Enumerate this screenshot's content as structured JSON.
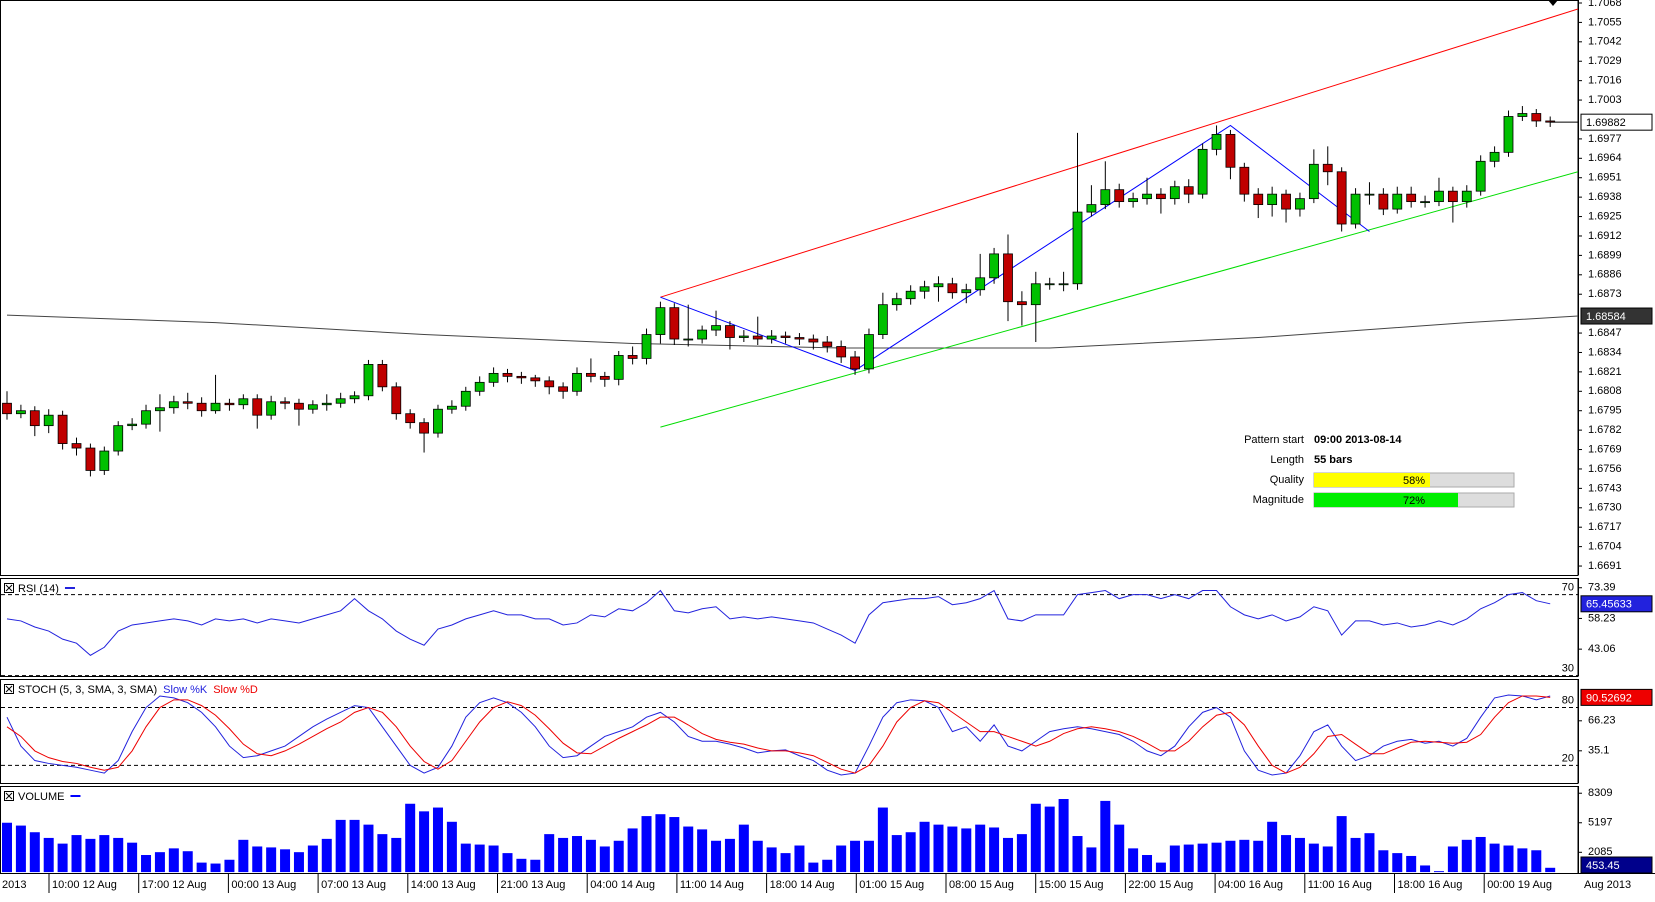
{
  "chart_data": [
    {
      "type": "candlestick",
      "ylim": [
        1.6685,
        1.707
      ],
      "yticks": [
        1.7068,
        1.7055,
        1.7042,
        1.7029,
        1.7016,
        1.7003,
        1.6977,
        1.6964,
        1.6951,
        1.6938,
        1.6925,
        1.6912,
        1.6899,
        1.6886,
        1.6873,
        1.6847,
        1.6834,
        1.6821,
        1.6808,
        1.6795,
        1.6782,
        1.6769,
        1.6756,
        1.6743,
        {
          "value": 1.673,
          "label": "1.6730"
        },
        1.6717,
        1.6704,
        1.6691
      ],
      "up_color": "#00c000",
      "down_color": "#c00000",
      "open": [
        1.68,
        1.6793,
        1.6795,
        1.6785,
        1.6792,
        1.6773,
        1.677,
        1.6755,
        1.6768,
        1.6785,
        1.6786,
        1.6795,
        1.6797,
        1.6801,
        1.68,
        1.6795,
        1.68,
        1.6799,
        1.6803,
        1.6792,
        1.6801,
        1.68,
        1.6796,
        1.6799,
        1.68,
        1.6803,
        1.6805,
        1.6826,
        1.6811,
        1.6793,
        1.6787,
        1.678,
        1.6796,
        1.6798,
        1.6808,
        1.6814,
        1.682,
        1.6818,
        1.6817,
        1.6815,
        1.6811,
        1.6808,
        1.682,
        1.6818,
        1.6816,
        1.6832,
        1.683,
        1.6846,
        1.6864,
        1.6843,
        1.6843,
        1.6849,
        1.6852,
        1.6844,
        1.6845,
        1.6843,
        1.6845,
        1.6844,
        1.6843,
        1.6841,
        1.6838,
        1.6831,
        1.6823,
        1.6846,
        1.6866,
        1.687,
        1.6875,
        1.6878,
        1.688,
        1.6874,
        1.6876,
        1.6884,
        1.69,
        1.6868,
        1.6866,
        1.688,
        1.688,
        1.688,
        1.6928,
        1.6933,
        1.6943,
        1.6935,
        1.6937,
        1.694,
        1.6937,
        1.6945,
        1.694,
        1.697,
        1.698,
        1.6958,
        1.694,
        1.6933,
        1.694,
        1.693,
        1.6937,
        1.696,
        1.6955,
        1.692,
        1.694,
        1.694,
        1.693,
        1.694,
        1.6935,
        1.6935,
        1.6942,
        1.6935,
        1.6942,
        1.6962,
        1.6968,
        1.6992,
        1.6994,
        1.6989
      ],
      "high": [
        1.6808,
        1.6799,
        1.6798,
        1.6796,
        1.6795,
        1.6777,
        1.6773,
        1.6771,
        1.6788,
        1.679,
        1.6799,
        1.6806,
        1.6805,
        1.6807,
        1.6804,
        1.6819,
        1.6803,
        1.6806,
        1.6806,
        1.6805,
        1.6804,
        1.6803,
        1.6802,
        1.6806,
        1.6807,
        1.6808,
        1.6829,
        1.6829,
        1.6814,
        1.6796,
        1.679,
        1.6799,
        1.6802,
        1.6811,
        1.6818,
        1.6824,
        1.6823,
        1.6821,
        1.6819,
        1.6818,
        1.6814,
        1.6824,
        1.683,
        1.6821,
        1.6835,
        1.6838,
        1.685,
        1.6868,
        1.6867,
        1.6866,
        1.6852,
        1.6862,
        1.6855,
        1.6849,
        1.6858,
        1.6849,
        1.6848,
        1.6847,
        1.6846,
        1.6845,
        1.6842,
        1.6835,
        1.685,
        1.6874,
        1.6874,
        1.6879,
        1.6882,
        1.6885,
        1.6884,
        1.688,
        1.69,
        1.6904,
        1.6913,
        1.6875,
        1.6888,
        1.6884,
        1.6888,
        1.6981,
        1.6946,
        1.6962,
        1.6947,
        1.6941,
        1.6951,
        1.6944,
        1.6949,
        1.695,
        1.6974,
        1.6986,
        1.6983,
        1.6961,
        1.6944,
        1.6945,
        1.6943,
        1.6941,
        1.697,
        1.6972,
        1.6958,
        1.6944,
        1.6948,
        1.6944,
        1.6945,
        1.6945,
        1.6939,
        1.6951,
        1.6945,
        1.6946,
        1.6966,
        1.6972,
        1.6996,
        1.6999,
        1.6997,
        1.6992
      ],
      "low": [
        1.6789,
        1.679,
        1.6778,
        1.678,
        1.6769,
        1.6765,
        1.6751,
        1.6752,
        1.6765,
        1.6782,
        1.6783,
        1.6781,
        1.6793,
        1.6796,
        1.6791,
        1.6793,
        1.6795,
        1.6796,
        1.6783,
        1.6789,
        1.6796,
        1.6785,
        1.6793,
        1.6795,
        1.6797,
        1.68,
        1.6802,
        1.6808,
        1.6789,
        1.6783,
        1.6767,
        1.6777,
        1.6793,
        1.6795,
        1.6805,
        1.6811,
        1.6814,
        1.6813,
        1.6811,
        1.6806,
        1.6803,
        1.6805,
        1.6814,
        1.6811,
        1.6812,
        1.6826,
        1.6826,
        1.684,
        1.6839,
        1.6838,
        1.684,
        1.6845,
        1.6836,
        1.6841,
        1.6839,
        1.684,
        1.684,
        1.6839,
        1.6836,
        1.6834,
        1.6827,
        1.6819,
        1.682,
        1.6843,
        1.6862,
        1.6866,
        1.687,
        1.6868,
        1.687,
        1.6867,
        1.6872,
        1.688,
        1.6855,
        1.6852,
        1.6841,
        1.6876,
        1.6875,
        1.6876,
        1.6925,
        1.693,
        1.6931,
        1.6931,
        1.6933,
        1.6927,
        1.6933,
        1.6934,
        1.6937,
        1.6966,
        1.695,
        1.6935,
        1.6924,
        1.6925,
        1.6921,
        1.6925,
        1.6934,
        1.6946,
        1.6915,
        1.6917,
        1.6933,
        1.6926,
        1.6927,
        1.6931,
        1.6931,
        1.6932,
        1.6921,
        1.6931,
        1.6939,
        1.6958,
        1.6965,
        1.6989,
        1.6985,
        1.6985
      ],
      "close": [
        1.6793,
        1.6795,
        1.6785,
        1.6792,
        1.6773,
        1.677,
        1.6755,
        1.6768,
        1.6785,
        1.6786,
        1.6795,
        1.6797,
        1.6801,
        1.68,
        1.6795,
        1.68,
        1.6799,
        1.6803,
        1.6792,
        1.6801,
        1.68,
        1.6796,
        1.6799,
        1.68,
        1.6803,
        1.6805,
        1.6826,
        1.6811,
        1.6793,
        1.6787,
        1.678,
        1.6796,
        1.6798,
        1.6808,
        1.6814,
        1.682,
        1.6818,
        1.6817,
        1.6815,
        1.6811,
        1.6808,
        1.682,
        1.6818,
        1.6816,
        1.6832,
        1.683,
        1.6846,
        1.6864,
        1.6843,
        1.6843,
        1.6849,
        1.6852,
        1.6844,
        1.6845,
        1.6843,
        1.6845,
        1.6844,
        1.6843,
        1.6841,
        1.6838,
        1.6831,
        1.6823,
        1.6846,
        1.6866,
        1.687,
        1.6875,
        1.6878,
        1.688,
        1.6874,
        1.6876,
        1.6884,
        1.69,
        1.6868,
        1.6866,
        1.688,
        1.688,
        1.688,
        1.6928,
        1.6933,
        1.6943,
        1.6935,
        1.6937,
        1.694,
        1.6937,
        1.6945,
        1.694,
        1.697,
        1.698,
        1.6958,
        1.694,
        1.6933,
        1.694,
        1.693,
        1.6937,
        1.696,
        1.6955,
        1.692,
        1.694,
        1.694,
        1.693,
        1.694,
        1.6935,
        1.6935,
        1.6942,
        1.6935,
        1.6942,
        1.6962,
        1.6968,
        1.6992,
        1.6994,
        1.6989,
        1.69882
      ],
      "ma": {
        "color": "#444444",
        "x": [
          0,
          15,
          30,
          45,
          60,
          75,
          90,
          105,
          113
        ],
        "values": [
          1.6859,
          1.6854,
          1.6846,
          1.684,
          1.6837,
          1.6837,
          1.6844,
          1.6854,
          1.68584
        ]
      },
      "lines": [
        {
          "color": "#ff0000",
          "x": [
            47,
            113
          ],
          "values": [
            1.6871,
            1.7064
          ]
        },
        {
          "color": "#00dd00",
          "x": [
            47,
            113
          ],
          "values": [
            1.6784,
            1.6955
          ]
        },
        {
          "color": "#0000ff",
          "x": [
            47,
            61,
            88,
            98
          ],
          "values": [
            1.6871,
            1.6822,
            1.6986,
            1.6915
          ]
        }
      ],
      "pattern": {
        "start_label": "Pattern start",
        "start": "09:00 2013-08-14",
        "length_label": "Length",
        "length": "55 bars",
        "quality_label": "Quality",
        "quality": {
          "value": 58,
          "label": "58%"
        },
        "quality_color": "#ffff00",
        "magnitude_label": "Magnitude",
        "magnitude": {
          "value": 72,
          "label": "72%"
        },
        "magnitude_color": "#00ee00"
      }
    },
    {
      "type": "line",
      "title": "RSI (14)",
      "ylim": [
        29.8,
        78.2
      ],
      "yticks": [
        73.39,
        58.23,
        43.06
      ],
      "levels": [
        70,
        30
      ],
      "series": [
        {
          "color": "#2222dd",
          "values": [
            58,
            57,
            54,
            52,
            48,
            46,
            40,
            44,
            52,
            55,
            56,
            57,
            58,
            57,
            55,
            58,
            57,
            58,
            56,
            58,
            57,
            56,
            58,
            60,
            62,
            68,
            62,
            58,
            52,
            48,
            45,
            53,
            55,
            58,
            60,
            62,
            60,
            60,
            58,
            58,
            55,
            56,
            60,
            59,
            63,
            62,
            66,
            72,
            62,
            61,
            63,
            64,
            58,
            59,
            58,
            59,
            58,
            57,
            56,
            53,
            50,
            46,
            60,
            66,
            67,
            68,
            68,
            69,
            65,
            66,
            68,
            72,
            58,
            57,
            60,
            60,
            60,
            70,
            71,
            72,
            68,
            70,
            70,
            68,
            70,
            68,
            72,
            72,
            64,
            60,
            58,
            60,
            57,
            59,
            64,
            62,
            50,
            57,
            57,
            55,
            56,
            54,
            55,
            57,
            55,
            58,
            63,
            66,
            70,
            71,
            67,
            65.45633
          ]
        }
      ]
    },
    {
      "type": "line",
      "title": "STOCH (5, 3, SMA, 3, SMA)",
      "ylim": [
        1.7,
        109.6
      ],
      "yticks": [
        66.23,
        35.1
      ],
      "levels": [
        80,
        20
      ],
      "series": [
        {
          "name": "Slow %K",
          "color": "#2222dd",
          "values": [
            70,
            40,
            25,
            22,
            20,
            18,
            15,
            12,
            25,
            55,
            80,
            92,
            90,
            85,
            75,
            60,
            40,
            28,
            30,
            35,
            40,
            50,
            60,
            68,
            75,
            82,
            80,
            60,
            40,
            20,
            12,
            18,
            40,
            70,
            85,
            90,
            85,
            75,
            60,
            40,
            28,
            30,
            40,
            50,
            55,
            60,
            70,
            75,
            65,
            50,
            45,
            45,
            42,
            38,
            33,
            35,
            36,
            30,
            25,
            15,
            10,
            12,
            40,
            70,
            85,
            88,
            87,
            80,
            55,
            60,
            45,
            62,
            40,
            35,
            45,
            55,
            58,
            60,
            58,
            55,
            52,
            45,
            35,
            30,
            40,
            60,
            75,
            80,
            70,
            35,
            15,
            10,
            12,
            30,
            55,
            62,
            40,
            25,
            30,
            40,
            45,
            47,
            43,
            45,
            40,
            48,
            70,
            90,
            93,
            92,
            88,
            92
          ]
        },
        {
          "name": "Slow %D",
          "color": "#ee0000",
          "values": [
            60,
            50,
            35,
            28,
            24,
            22,
            18,
            15,
            18,
            35,
            60,
            80,
            88,
            88,
            82,
            72,
            58,
            42,
            32,
            30,
            35,
            42,
            50,
            58,
            65,
            75,
            80,
            75,
            60,
            40,
            24,
            16,
            25,
            45,
            65,
            80,
            86,
            82,
            72,
            58,
            43,
            33,
            32,
            40,
            48,
            55,
            62,
            70,
            70,
            62,
            53,
            47,
            44,
            42,
            38,
            35,
            35,
            33,
            30,
            23,
            16,
            12,
            20,
            40,
            65,
            80,
            87,
            85,
            75,
            65,
            55,
            55,
            50,
            45,
            40,
            45,
            53,
            58,
            60,
            58,
            55,
            50,
            43,
            35,
            35,
            45,
            60,
            72,
            75,
            62,
            40,
            20,
            12,
            18,
            32,
            50,
            52,
            42,
            32,
            32,
            38,
            44,
            45,
            44,
            43,
            44,
            52,
            70,
            85,
            92,
            92,
            90.52692
          ]
        }
      ]
    },
    {
      "type": "bar",
      "title": "VOLUME",
      "ylim": [
        -95,
        9070
      ],
      "yticks": [
        8309,
        5197,
        2085
      ],
      "color": "#0000ff",
      "values": [
        5200,
        4900,
        4200,
        3600,
        3000,
        3900,
        3500,
        3900,
        3600,
        3100,
        1800,
        2100,
        2500,
        2200,
        1000,
        900,
        1300,
        3400,
        2700,
        2600,
        2400,
        2100,
        2800,
        3500,
        5500,
        5500,
        5000,
        4000,
        3600,
        7200,
        6400,
        6800,
        5300,
        3000,
        2900,
        2800,
        2000,
        1400,
        1300,
        4000,
        3600,
        3800,
        3400,
        2700,
        3300,
        4600,
        5900,
        6100,
        5800,
        4800,
        4500,
        3300,
        3500,
        5000,
        3300,
        2600,
        2000,
        2800,
        1000,
        1300,
        2800,
        3300,
        3300,
        6800,
        3900,
        4200,
        5300,
        5000,
        4800,
        4600,
        5000,
        4700,
        3600,
        4000,
        7200,
        6900,
        7700,
        3800,
        2600,
        7500,
        5000,
        2500,
        1800,
        1000,
        2800,
        2900,
        3000,
        3100,
        3300,
        3400,
        3300,
        5300,
        3900,
        3600,
        3000,
        2700,
        5900,
        3600,
        4100,
        2300,
        2000,
        1700,
        700,
        100,
        2700,
        3400,
        3700,
        3000,
        2800,
        2500,
        2300,
        453.45
      ],
      "x_labels": [
        "2013",
        "10:00 12 Aug",
        "17:00 12 Aug",
        "00:00 13 Aug",
        "07:00 13 Aug",
        "14:00 13 Aug",
        "21:00 13 Aug",
        "04:00 14 Aug",
        "11:00 14 Aug",
        "18:00 14 Aug",
        "01:00 15 Aug",
        "08:00 15 Aug",
        "15:00 15 Aug",
        "22:00 15 Aug",
        "04:00 16 Aug",
        "11:00 16 Aug",
        "18:00 16 Aug",
        "00:00 19 Aug"
      ],
      "x_axis_label": "Aug 2013"
    }
  ]
}
